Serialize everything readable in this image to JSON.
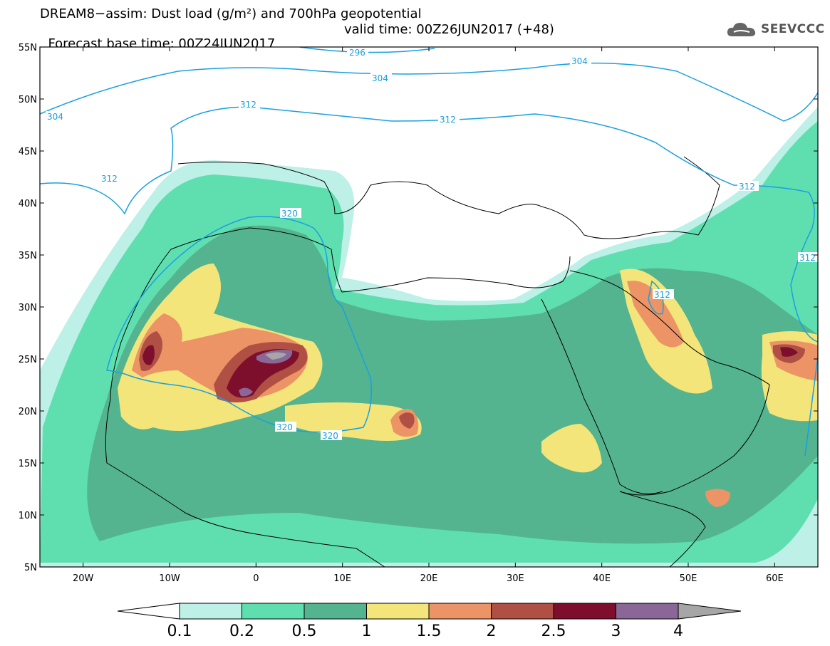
{
  "header": {
    "title_line1": "DREAM8−assim: Dust load (g/m²) and 700hPa geopotential",
    "title_line2_left": "Forecast base time: 00Z24JUN2017",
    "title_line2_right": "valid time: 00Z26JUN2017 (+48)",
    "logo_text": "SEEVCCC",
    "logo_icon": "cloud-logo-icon"
  },
  "map": {
    "lat_labels": [
      "55N",
      "50N",
      "45N",
      "40N",
      "35N",
      "30N",
      "25N",
      "20N",
      "15N",
      "10N",
      "5N"
    ],
    "lon_labels": [
      "20W",
      "10W",
      "0",
      "10E",
      "20E",
      "30E",
      "40E",
      "50E",
      "60E"
    ],
    "lat_range": [
      5,
      55
    ],
    "lon_range": [
      -25,
      65
    ],
    "contour_labels": [
      "296",
      "304",
      "304",
      "312",
      "312",
      "304",
      "312",
      "312",
      "312",
      "320",
      "320",
      "320",
      "312"
    ]
  },
  "colorbar": {
    "ticks": [
      "0.1",
      "0.2",
      "0.5",
      "1",
      "1.5",
      "2",
      "2.5",
      "3",
      "4"
    ],
    "colors": [
      "#bdf0e6",
      "#5fdfb0",
      "#54b48f",
      "#f4e57a",
      "#ec9466",
      "#b04f44",
      "#7d0f2d",
      "#8a6797",
      "#a6a6a6"
    ]
  }
}
